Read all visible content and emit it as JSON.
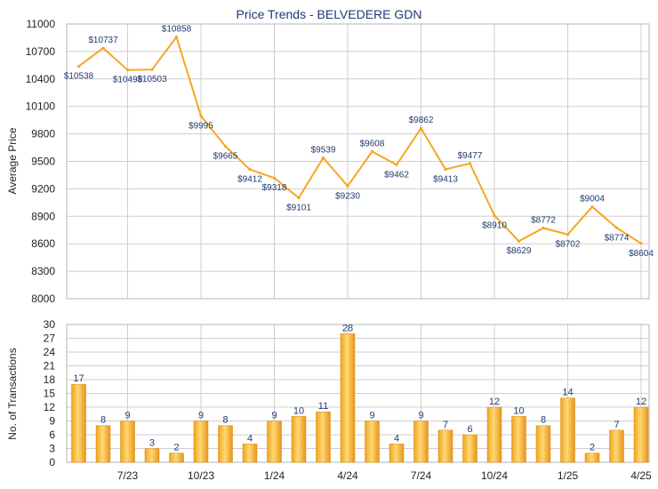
{
  "chart_data": [
    {
      "type": "line",
      "title": "Price Trends - BELVEDERE GDN",
      "ylabel": "Average Price",
      "ylim": [
        8000,
        11000
      ],
      "yticks": [
        "8000",
        "8300",
        "8600",
        "8900",
        "9200",
        "9500",
        "9800",
        "10100",
        "10400",
        "10700",
        "11000"
      ],
      "xticks": [
        "7/23",
        "10/23",
        "1/24",
        "4/24",
        "7/24",
        "10/24",
        "1/25",
        "4/25"
      ],
      "grid": true,
      "line_color": "#f5a623",
      "series": [
        {
          "values": [
            10538,
            10737,
            10498,
            10503,
            10858,
            9995,
            9665,
            9412,
            9318,
            9101,
            9539,
            9230,
            9608,
            9462,
            9862,
            9413,
            9477,
            8910,
            8629,
            8772,
            8702,
            9004,
            8774,
            8604
          ],
          "labels": [
            "$10538",
            "$10737",
            "$10498",
            "$10503",
            "$10858",
            "$9995",
            "$9665",
            "$9412",
            "$9318",
            "$9101",
            "$9539",
            "$9230",
            "$9608",
            "$9462",
            "$9862",
            "$9413",
            "$9477",
            "$8910",
            "$8629",
            "$8772",
            "$8702",
            "$9004",
            "$8774",
            "$8604"
          ]
        }
      ]
    },
    {
      "type": "bar",
      "ylabel": "No. of Transactions",
      "ylim": [
        0,
        30
      ],
      "yticks": [
        "0",
        "3",
        "6",
        "9",
        "12",
        "15",
        "18",
        "21",
        "24",
        "27",
        "30"
      ],
      "xticks": [
        "7/23",
        "10/23",
        "1/24",
        "4/24",
        "7/24",
        "10/24",
        "1/25",
        "4/25"
      ],
      "grid": true,
      "bar_color": "#f5a623",
      "series": [
        {
          "values": [
            17,
            8,
            9,
            3,
            2,
            9,
            8,
            4,
            9,
            10,
            11,
            28,
            9,
            4,
            9,
            7,
            6,
            12,
            10,
            8,
            14,
            2,
            7,
            12
          ],
          "labels": [
            "17",
            "8",
            "9",
            "3",
            "2",
            "9",
            "8",
            "4",
            "9",
            "10",
            "11",
            "28",
            "9",
            "4",
            "9",
            "7",
            "6",
            "12",
            "10",
            "8",
            "14",
            "2",
            "7",
            "12"
          ]
        }
      ]
    }
  ]
}
